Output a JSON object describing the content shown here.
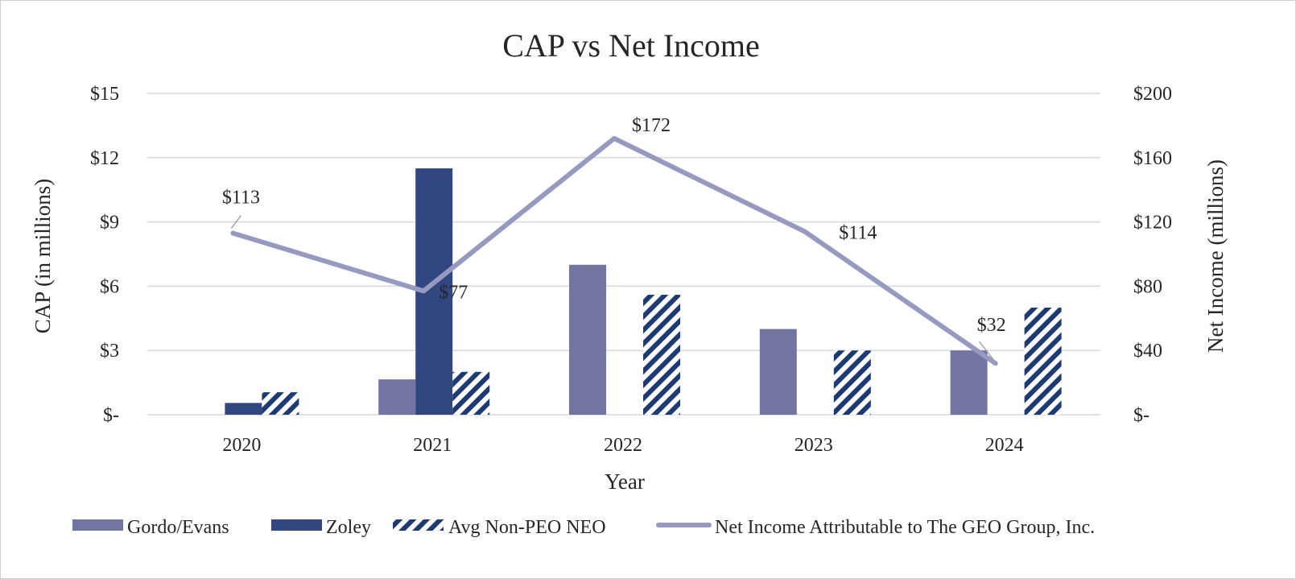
{
  "colors": {
    "gordo": "#7275a2",
    "zoley": "#324680",
    "hatch": "#1e3a72",
    "line": "#9699c0",
    "text": "#262626"
  },
  "chart_data": {
    "type": "bar",
    "title": "CAP vs Net Income",
    "xlabel": "Year",
    "ylabel": "CAP (in millions)",
    "y2label": "Net Income (millions)",
    "categories": [
      "2020",
      "2021",
      "2022",
      "2023",
      "2024"
    ],
    "ylim": [
      0,
      15
    ],
    "y_ticks": [
      0,
      3,
      6,
      9,
      12,
      15
    ],
    "y_tick_labels": [
      "$-",
      "$3",
      "$6",
      "$9",
      "$12",
      "$15"
    ],
    "y2lim": [
      0,
      200
    ],
    "y2_ticks": [
      0,
      40,
      80,
      120,
      160,
      200
    ],
    "y2_tick_labels": [
      "$-",
      "$40",
      "$80",
      "$120",
      "$160",
      "$200"
    ],
    "series": [
      {
        "name": "Gordo/Evans",
        "kind": "bar",
        "axis": "left",
        "style": "solid-gordo",
        "values": [
          0,
          1.65,
          7.0,
          4.0,
          3.0
        ]
      },
      {
        "name": "Zoley",
        "kind": "bar",
        "axis": "left",
        "style": "solid-zoley",
        "values": [
          0.55,
          11.5,
          0,
          0,
          0
        ]
      },
      {
        "name": "Avg Non-PEO NEO",
        "kind": "bar",
        "axis": "left",
        "style": "hatch",
        "values": [
          1.05,
          2.0,
          5.6,
          3.0,
          5.0
        ]
      },
      {
        "name": "Net Income Attributable to The GEO Group, Inc.",
        "kind": "line",
        "axis": "right",
        "values": [
          113,
          77,
          172,
          114,
          32
        ],
        "data_labels": [
          "$113",
          "$77",
          "$172",
          "$114",
          "$32"
        ]
      }
    ],
    "legend": "bottom"
  }
}
